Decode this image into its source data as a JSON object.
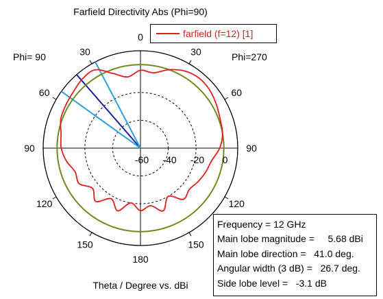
{
  "chart_data": {
    "type": "polar-line",
    "title": "Farfield Directivity Abs (Phi=90)",
    "xlabel": "Theta / Degree vs. dBi",
    "phi_left_label": "Phi= 90",
    "phi_right_label": "Phi=270",
    "angle_labels": [
      {
        "angle": 0,
        "text": "0"
      },
      {
        "angle": 30,
        "text": "30"
      },
      {
        "angle": 60,
        "text": "60"
      },
      {
        "angle": 90,
        "text": "90"
      },
      {
        "angle": 120,
        "text": "120"
      },
      {
        "angle": 150,
        "text": "150"
      },
      {
        "angle": 180,
        "text": "180"
      },
      {
        "angle": -150,
        "text": "150"
      },
      {
        "angle": -120,
        "text": "120"
      },
      {
        "angle": -90,
        "text": "90"
      },
      {
        "angle": -60,
        "text": "60"
      },
      {
        "angle": -30,
        "text": "30"
      }
    ],
    "radial_ticks": [
      {
        "value": -60,
        "text": "-60"
      },
      {
        "value": -40,
        "text": "-40"
      },
      {
        "value": -20,
        "text": "-20"
      },
      {
        "value": 0,
        "text": "0"
      }
    ],
    "rlim": [
      -60,
      10
    ],
    "legend": {
      "entries": [
        "farfield (f=12) [1]"
      ],
      "placement": "top-right"
    },
    "series": [
      {
        "name": "farfield (f=12) [1]",
        "color": "#e0201e",
        "theta": [
          0,
          10,
          20,
          30,
          40,
          50,
          60,
          70,
          80,
          90,
          100,
          110,
          120,
          130,
          140,
          150,
          160,
          170,
          180,
          190,
          200,
          210,
          220,
          230,
          240,
          250,
          260,
          270,
          280,
          290,
          300,
          310,
          320,
          330,
          340,
          350,
          360
        ],
        "values": [
          -4,
          -8,
          -3,
          5,
          5,
          3,
          2,
          1,
          -2,
          -3,
          -6,
          -10,
          -9,
          -15,
          -10,
          -18,
          -12,
          -20,
          -15,
          -18,
          -12,
          -20,
          -12,
          -14,
          -12,
          -10,
          -8,
          -3,
          0,
          1,
          3,
          5,
          5.68,
          4,
          0,
          -5,
          -4
        ]
      }
    ],
    "reference_circle": {
      "value": 0,
      "color": "#6e8b1e"
    },
    "markers": [
      {
        "label": "main lobe direction",
        "angle": -41,
        "color": "#1a1aa0"
      },
      {
        "label": "3 dB beamwidth edge",
        "angle": -27.7,
        "color": "#2aa0e0"
      },
      {
        "label": "3 dB beamwidth edge",
        "angle": -54.4,
        "color": "#2aa0e0"
      }
    ]
  },
  "infobox": {
    "rows": [
      {
        "label": "Frequency = 12 GHz",
        "value": ""
      },
      {
        "label": "Main lobe magnitude =",
        "value": "     5.68 dBi"
      },
      {
        "label": "Main lobe direction =",
        "value": "   41.0 deg."
      },
      {
        "label": "Angular width (3 dB) =",
        "value": "   26.7 deg."
      },
      {
        "label": "Side lobe level =",
        "value": "   -3.1 dB"
      }
    ]
  }
}
